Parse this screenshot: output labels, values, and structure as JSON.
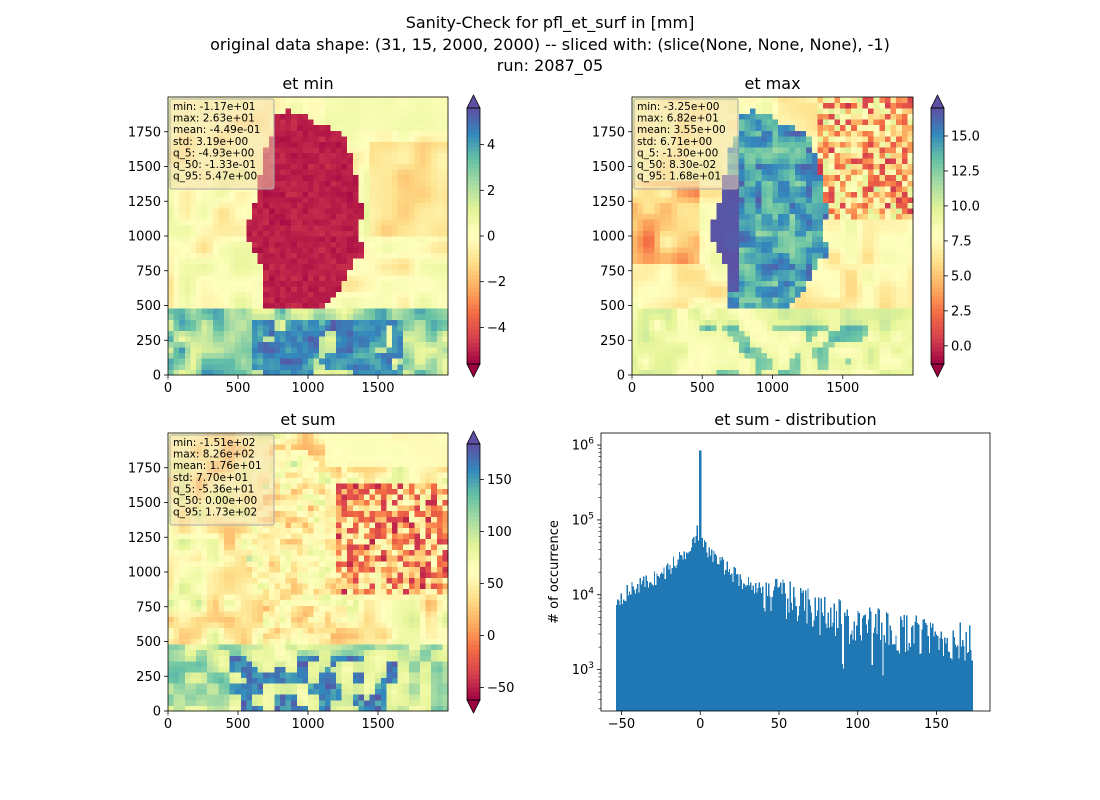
{
  "figure": {
    "title_lines": [
      "Sanity-Check for pfl_et_surf in [mm]",
      "original data shape: (31, 15, 2000, 2000) -- sliced with: (slice(None, None, None), -1)",
      "run: 2087_05"
    ],
    "colormap": "Spectral",
    "colormap_stops": [
      "#9e0142",
      "#d53e4f",
      "#f46d43",
      "#fdae61",
      "#fee08b",
      "#ffffbf",
      "#e6f598",
      "#abdda4",
      "#66c2a5",
      "#3288bd",
      "#5e4fa2"
    ],
    "hist_color": "#1f77b4"
  },
  "chart_data": [
    {
      "type": "heatmap",
      "title": "et min",
      "xticks": [
        0,
        500,
        1000,
        1500
      ],
      "yticks": [
        0,
        250,
        500,
        750,
        1000,
        1250,
        1500,
        1750
      ],
      "xlim": [
        0,
        2000
      ],
      "ylim": [
        0,
        2000
      ],
      "colorbar": {
        "range": [
          -5.6,
          5.6
        ],
        "ticks": [
          -4,
          -2,
          0,
          2,
          4
        ],
        "tick_labels": [
          "−4",
          "−2",
          "0",
          "2",
          "4"
        ],
        "extend": "both"
      },
      "stats": [
        "min: -1.17e+01",
        "max: 2.63e+01",
        "mean: -4.49e-01",
        "std: 3.19e+00",
        "q_5: -4.93e+00",
        "q_50: -1.33e-01",
        "q_95: 5.47e+00"
      ]
    },
    {
      "type": "heatmap",
      "title": "et max",
      "xticks": [
        0,
        500,
        1000,
        1500
      ],
      "yticks": [
        0,
        250,
        500,
        750,
        1000,
        1250,
        1500,
        1750
      ],
      "xlim": [
        0,
        2000
      ],
      "ylim": [
        0,
        2000
      ],
      "colorbar": {
        "range": [
          -1.3,
          17
        ],
        "ticks": [
          0,
          2.5,
          5,
          7.5,
          10,
          12.5,
          15
        ],
        "tick_labels": [
          "0.0",
          "2.5",
          "5.0",
          "7.5",
          "10.0",
          "12.5",
          "15.0"
        ],
        "extend": "both"
      },
      "stats": [
        "min: -3.25e+00",
        "max: 6.82e+01",
        "mean: 3.55e+00",
        "std: 6.71e+00",
        "q_5: -1.30e+00",
        "q_50: 8.30e-02",
        "q_95: 1.68e+01"
      ]
    },
    {
      "type": "heatmap",
      "title": "et sum",
      "xticks": [
        0,
        500,
        1000,
        1500
      ],
      "yticks": [
        0,
        250,
        500,
        750,
        1000,
        1250,
        1500,
        1750
      ],
      "xlim": [
        0,
        2000
      ],
      "ylim": [
        0,
        2000
      ],
      "colorbar": {
        "range": [
          -62,
          184
        ],
        "ticks": [
          -50,
          0,
          50,
          100,
          150
        ],
        "tick_labels": [
          "−50",
          "0",
          "50",
          "100",
          "150"
        ],
        "extend": "both"
      },
      "stats": [
        "min: -1.51e+02",
        "max: 8.26e+02",
        "mean: 1.76e+01",
        "std: 7.70e+01",
        "q_5: -5.36e+01",
        "q_50: 0.00e+00",
        "q_95: 1.73e+02"
      ]
    },
    {
      "type": "bar",
      "title": "et sum - distribution",
      "ylabel": "# of occurrence",
      "yscale": "log",
      "xlim": [
        -63,
        184
      ],
      "ylim": [
        280,
        1450000
      ],
      "xticks": [
        -50,
        0,
        50,
        100,
        150
      ],
      "xtick_labels": [
        "−50",
        "0",
        "50",
        "100",
        "150"
      ],
      "yticks": [
        1000,
        10000,
        100000,
        1000000
      ],
      "ytick_labels": [
        "10^3",
        "10^4",
        "10^5",
        "10^6"
      ],
      "bin_range": [
        -53.6,
        173
      ],
      "bin_count": 300,
      "peak": {
        "x": 0,
        "count": 850000
      },
      "shape_anchors": [
        {
          "x": -53.6,
          "count": 8500
        },
        {
          "x": -40,
          "count": 13000
        },
        {
          "x": -25,
          "count": 18000
        },
        {
          "x": -10,
          "count": 35000
        },
        {
          "x": -2,
          "count": 70000
        },
        {
          "x": 2,
          "count": 45000
        },
        {
          "x": 10,
          "count": 30000
        },
        {
          "x": 25,
          "count": 16000
        },
        {
          "x": 50,
          "count": 9000
        },
        {
          "x": 75,
          "count": 6000
        },
        {
          "x": 100,
          "count": 4000
        },
        {
          "x": 130,
          "count": 3000
        },
        {
          "x": 150,
          "count": 2600
        },
        {
          "x": 173,
          "count": 2200
        }
      ]
    }
  ]
}
